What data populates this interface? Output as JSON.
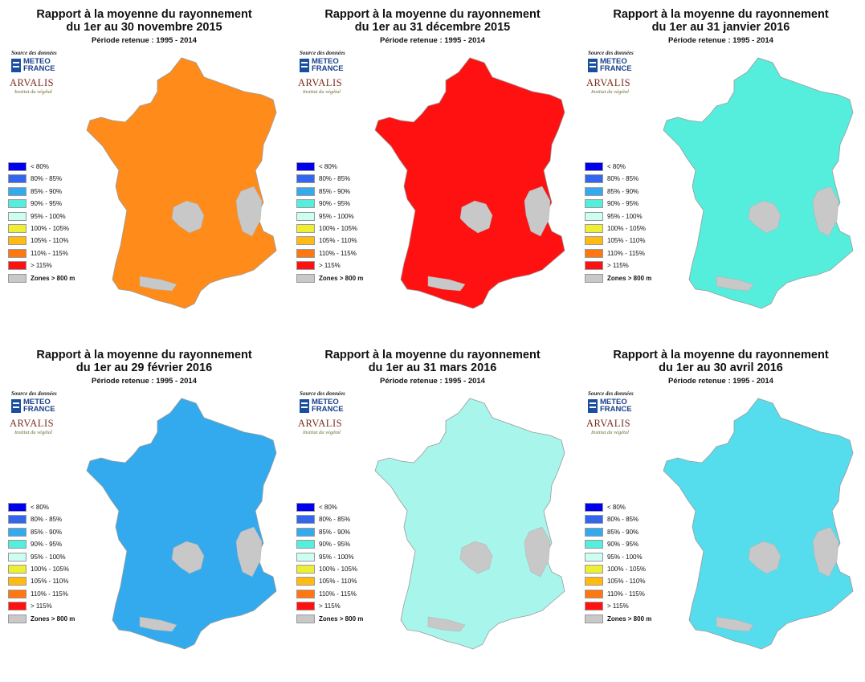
{
  "panels": [
    {
      "title_line1": "Rapport à la moyenne du rayonnement",
      "title_line2": "du 1er au 30 novembre 2015",
      "period": "Période retenue : 1995 - 2014",
      "source": "Source des données",
      "meteo_france": [
        "METEO",
        "FRANCE"
      ],
      "arvalis": "ARVALIS",
      "arvalis_sub": "Institut du végétal",
      "dominant_color": "#ff8c1a",
      "legend": [
        {
          "label": "< 80%",
          "color": "#0000ee"
        },
        {
          "label": "80% - 85%",
          "color": "#3366ee"
        },
        {
          "label": "85% - 90%",
          "color": "#33aaee"
        },
        {
          "label": "90% - 95%",
          "color": "#55eedd"
        },
        {
          "label": "95% - 100%",
          "color": "#ccfff2"
        },
        {
          "label": "100% - 105%",
          "color": "#eeee33"
        },
        {
          "label": "105% - 110%",
          "color": "#ffbb11"
        },
        {
          "label": "110% - 115%",
          "color": "#ff7711"
        },
        {
          "label": "> 115%",
          "color": "#ff1111"
        },
        {
          "label": "Zones > 800 m",
          "color": "#c8c8c8"
        }
      ]
    },
    {
      "title_line1": "Rapport à la moyenne du rayonnement",
      "title_line2": "du 1er au 31 décembre 2015",
      "period": "Période retenue : 1995 - 2014",
      "source": "Source des données",
      "meteo_france": [
        "METEO",
        "FRANCE"
      ],
      "arvalis": "ARVALIS",
      "arvalis_sub": "Institut du végétal",
      "dominant_color": "#ff1111",
      "legend": [
        {
          "label": "< 80%",
          "color": "#0000ee"
        },
        {
          "label": "80% - 85%",
          "color": "#3366ee"
        },
        {
          "label": "85% - 90%",
          "color": "#33aaee"
        },
        {
          "label": "90% - 95%",
          "color": "#55eedd"
        },
        {
          "label": "95% - 100%",
          "color": "#ccfff2"
        },
        {
          "label": "100% - 105%",
          "color": "#eeee33"
        },
        {
          "label": "105% - 110%",
          "color": "#ffbb11"
        },
        {
          "label": "110% - 115%",
          "color": "#ff7711"
        },
        {
          "label": "> 115%",
          "color": "#ff1111"
        },
        {
          "label": "Zones > 800 m",
          "color": "#c8c8c8"
        }
      ]
    },
    {
      "title_line1": "Rapport à la moyenne du rayonnement",
      "title_line2": "du 1er au 31 janvier 2016",
      "period": "Période retenue : 1995 - 2014",
      "source": "Source des données",
      "meteo_france": [
        "METEO",
        "FRANCE"
      ],
      "arvalis": "ARVALIS",
      "arvalis_sub": "Institut du végétal",
      "dominant_color": "#55eedd",
      "legend": [
        {
          "label": "< 80%",
          "color": "#0000ee"
        },
        {
          "label": "80% - 85%",
          "color": "#3366ee"
        },
        {
          "label": "85% - 90%",
          "color": "#33aaee"
        },
        {
          "label": "90% - 95%",
          "color": "#55eedd"
        },
        {
          "label": "95% - 100%",
          "color": "#ccfff2"
        },
        {
          "label": "100% - 105%",
          "color": "#eeee33"
        },
        {
          "label": "105% - 110%",
          "color": "#ffbb11"
        },
        {
          "label": "110% - 115%",
          "color": "#ff7711"
        },
        {
          "label": "> 115%",
          "color": "#ff1111"
        },
        {
          "label": "Zones > 800 m",
          "color": "#c8c8c8"
        }
      ]
    },
    {
      "title_line1": "Rapport à la moyenne du rayonnement",
      "title_line2": "du 1er au 29 février 2016",
      "period": "Période retenue : 1995 - 2014",
      "source": "Source des données",
      "meteo_france": [
        "METEO",
        "FRANCE"
      ],
      "arvalis": "ARVALIS",
      "arvalis_sub": "Institut du végétal",
      "dominant_color": "#33aaee",
      "legend": [
        {
          "label": "< 80%",
          "color": "#0000ee"
        },
        {
          "label": "80% - 85%",
          "color": "#3366ee"
        },
        {
          "label": "85% - 90%",
          "color": "#33aaee"
        },
        {
          "label": "90% - 95%",
          "color": "#55eedd"
        },
        {
          "label": "95% - 100%",
          "color": "#ccfff2"
        },
        {
          "label": "100% - 105%",
          "color": "#eeee33"
        },
        {
          "label": "105% - 110%",
          "color": "#ffbb11"
        },
        {
          "label": "110% - 115%",
          "color": "#ff7711"
        },
        {
          "label": "> 115%",
          "color": "#ff1111"
        },
        {
          "label": "Zones > 800 m",
          "color": "#c8c8c8"
        }
      ]
    },
    {
      "title_line1": "Rapport à la moyenne du rayonnement",
      "title_line2": "du 1er au 31 mars 2016",
      "period": "Période retenue : 1995 - 2014",
      "source": "Source des données",
      "meteo_france": [
        "METEO",
        "FRANCE"
      ],
      "arvalis": "ARVALIS",
      "arvalis_sub": "Institut du végétal",
      "dominant_color": "#a8f5ec",
      "legend": [
        {
          "label": "< 80%",
          "color": "#0000ee"
        },
        {
          "label": "80% - 85%",
          "color": "#3366ee"
        },
        {
          "label": "85% - 90%",
          "color": "#33aaee"
        },
        {
          "label": "90% - 95%",
          "color": "#55eedd"
        },
        {
          "label": "95% - 100%",
          "color": "#ccfff2"
        },
        {
          "label": "100% - 105%",
          "color": "#eeee33"
        },
        {
          "label": "105% - 110%",
          "color": "#ffbb11"
        },
        {
          "label": "110% - 115%",
          "color": "#ff7711"
        },
        {
          "label": "> 115%",
          "color": "#ff1111"
        },
        {
          "label": "Zones > 800 m",
          "color": "#c8c8c8"
        }
      ]
    },
    {
      "title_line1": "Rapport à la moyenne du rayonnement",
      "title_line2": "du 1er au 30 avril 2016",
      "period": "Période retenue : 1995 - 2014",
      "source": "Source des données",
      "meteo_france": [
        "METEO",
        "FRANCE"
      ],
      "arvalis": "ARVALIS",
      "arvalis_sub": "Institut du végétal",
      "dominant_color": "#55ddee",
      "legend": [
        {
          "label": "< 80%",
          "color": "#0000ee"
        },
        {
          "label": "80% - 85%",
          "color": "#3366ee"
        },
        {
          "label": "85% - 90%",
          "color": "#33aaee"
        },
        {
          "label": "90% - 95%",
          "color": "#55eedd"
        },
        {
          "label": "95% - 100%",
          "color": "#ccfff2"
        },
        {
          "label": "100% - 105%",
          "color": "#eeee33"
        },
        {
          "label": "105% - 110%",
          "color": "#ffbb11"
        },
        {
          "label": "110% - 115%",
          "color": "#ff7711"
        },
        {
          "label": "> 115%",
          "color": "#ff1111"
        },
        {
          "label": "Zones > 800 m",
          "color": "#c8c8c8"
        }
      ]
    }
  ]
}
